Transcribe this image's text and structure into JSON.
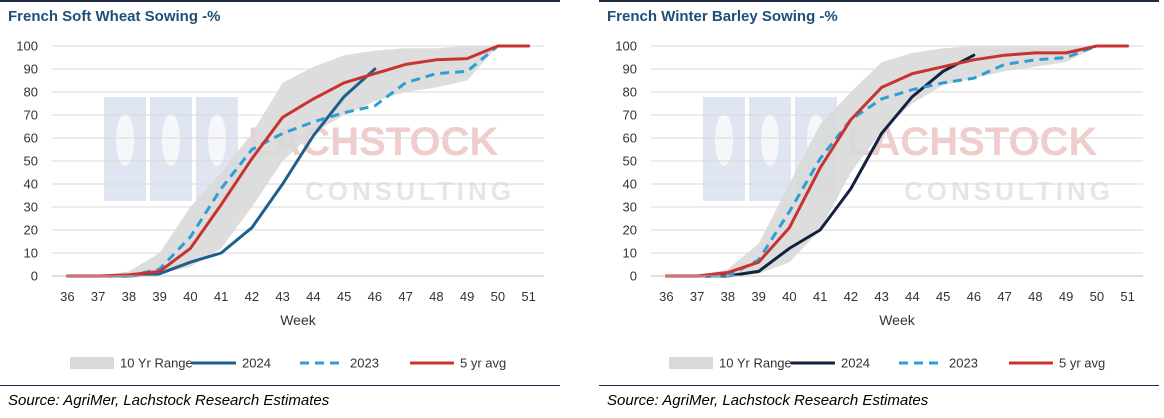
{
  "source_text": "Source: AgriMer, Lachstock Research Estimates",
  "watermark": {
    "line1": "LACHSTOCK",
    "line2": "CONSULTING"
  },
  "colors": {
    "range": "#d9d9d9",
    "y2024_left": "#1f5f8b",
    "y2024_right": "#12223f",
    "y2023": "#2e9fd6",
    "avg": "#c8332f",
    "title": "#1f4e79"
  },
  "chart_data": [
    {
      "type": "line",
      "title": "French Soft Wheat Sowing -%",
      "xlabel": "Week",
      "ylabel": "",
      "ylim": [
        0,
        100
      ],
      "yticks": [
        0,
        10,
        20,
        30,
        40,
        50,
        60,
        70,
        80,
        90,
        100
      ],
      "x": [
        36,
        37,
        38,
        39,
        40,
        41,
        42,
        43,
        44,
        45,
        46,
        47,
        48,
        49,
        50,
        51
      ],
      "range": {
        "name": "10 Yr Range",
        "low": [
          0,
          0,
          0,
          1,
          4,
          12,
          30,
          50,
          62,
          70,
          76,
          80,
          82,
          85,
          100,
          100
        ],
        "high": [
          0,
          0,
          2,
          10,
          30,
          45,
          62,
          84,
          91,
          96,
          98,
          99,
          99,
          100,
          100,
          100
        ]
      },
      "series": [
        {
          "name": "2024",
          "style": "solid",
          "color_key": "y2024_left",
          "values": [
            0,
            0,
            0,
            1,
            6,
            10,
            21,
            40,
            61,
            78,
            90,
            null,
            null,
            null,
            null,
            null
          ]
        },
        {
          "name": "2023",
          "style": "dashed",
          "color_key": "y2023",
          "values": [
            0,
            0,
            0,
            3,
            17,
            38,
            55,
            62,
            67,
            71,
            74,
            84,
            88,
            89,
            100,
            null
          ]
        },
        {
          "name": "5 yr avg",
          "style": "solid",
          "color_key": "avg",
          "values": [
            0,
            0,
            0.5,
            2,
            12,
            31,
            51,
            69,
            77,
            84,
            88,
            92,
            94,
            94.5,
            100,
            100
          ]
        }
      ],
      "legend": [
        "10 Yr Range",
        "2024",
        "2023",
        "5 yr avg"
      ],
      "legend_position": "bottom",
      "grid": true
    },
    {
      "type": "line",
      "title": "French Winter Barley Sowing -%",
      "xlabel": "Week",
      "ylabel": "",
      "ylim": [
        0,
        100
      ],
      "yticks": [
        0,
        10,
        20,
        30,
        40,
        50,
        60,
        70,
        80,
        90,
        100
      ],
      "x": [
        36,
        37,
        38,
        39,
        40,
        41,
        42,
        43,
        44,
        45,
        46,
        47,
        48,
        49,
        50,
        51
      ],
      "range": {
        "name": "10 Yr Range",
        "low": [
          0,
          0,
          0,
          1,
          6,
          20,
          45,
          63,
          75,
          83,
          86,
          89,
          91,
          93,
          100,
          100
        ],
        "high": [
          0,
          0,
          3,
          14,
          40,
          66,
          80,
          93,
          97,
          99,
          100,
          100,
          100,
          100,
          100,
          100
        ]
      },
      "series": [
        {
          "name": "2024",
          "style": "solid",
          "color_key": "y2024_right",
          "values": [
            0,
            0,
            0,
            2,
            12,
            20,
            38,
            62,
            78,
            89,
            96,
            null,
            null,
            null,
            null,
            null
          ]
        },
        {
          "name": "2023",
          "style": "dashed",
          "color_key": "y2023",
          "values": [
            0,
            0,
            0,
            7,
            28,
            51,
            68,
            77,
            81,
            84,
            86,
            92,
            94,
            95,
            100,
            null
          ]
        },
        {
          "name": "5 yr avg",
          "style": "solid",
          "color_key": "avg",
          "values": [
            0,
            0,
            1.5,
            6,
            21,
            47,
            68,
            82,
            88,
            91,
            94,
            96,
            97,
            97,
            100,
            100
          ]
        }
      ],
      "legend": [
        "10 Yr Range",
        "2024",
        "2023",
        "5 yr avg"
      ],
      "legend_position": "bottom",
      "grid": true
    }
  ]
}
